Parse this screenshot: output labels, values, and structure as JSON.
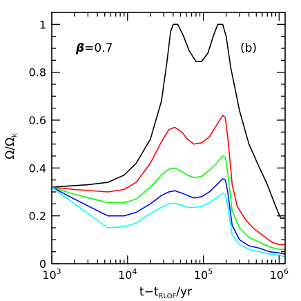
{
  "chart_data": {
    "type": "line",
    "xlabel": "t−t_RLOF/yr",
    "xlabel_main": "t−t",
    "xlabel_sub": "RLOF",
    "xlabel_tail": "/yr",
    "ylabel": "Ω/Ω_k",
    "ylabel_main": "Ω/Ω",
    "ylabel_sub": "k",
    "xscale": "log",
    "xlim": [
      1000,
      1200000
    ],
    "ylim": [
      0,
      1.05
    ],
    "x_ticks": [
      {
        "value": 1000,
        "base": "10",
        "exp": "3"
      },
      {
        "value": 10000,
        "base": "10",
        "exp": "4"
      },
      {
        "value": 100000,
        "base": "10",
        "exp": "5"
      },
      {
        "value": 1000000,
        "base": "10",
        "exp": "6"
      }
    ],
    "y_ticks": [
      {
        "value": 0,
        "label": "0"
      },
      {
        "value": 0.2,
        "label": "0.2"
      },
      {
        "value": 0.4,
        "label": "0.4"
      },
      {
        "value": 0.6,
        "label": "0.6"
      },
      {
        "value": 0.8,
        "label": "0.8"
      },
      {
        "value": 1,
        "label": "1"
      }
    ],
    "annotations": [
      {
        "id": "beta",
        "text_symbol": "β",
        "text_value": "=0.7"
      },
      {
        "id": "panel",
        "text": "(b)"
      }
    ],
    "series": [
      {
        "color": "#000000",
        "points": [
          [
            1000,
            0.32
          ],
          [
            3000,
            0.33
          ],
          [
            5500,
            0.34
          ],
          [
            9000,
            0.37
          ],
          [
            13000,
            0.42
          ],
          [
            20000,
            0.52
          ],
          [
            28000,
            0.68
          ],
          [
            33000,
            0.84
          ],
          [
            37000,
            0.97
          ],
          [
            40000,
            1.0
          ],
          [
            46000,
            1.0
          ],
          [
            55000,
            0.95
          ],
          [
            65000,
            0.89
          ],
          [
            80000,
            0.845
          ],
          [
            95000,
            0.845
          ],
          [
            115000,
            0.88
          ],
          [
            135000,
            0.95
          ],
          [
            155000,
            1.0
          ],
          [
            180000,
            1.0
          ],
          [
            200000,
            0.95
          ],
          [
            230000,
            0.82
          ],
          [
            300000,
            0.64
          ],
          [
            400000,
            0.5
          ],
          [
            500000,
            0.43
          ],
          [
            700000,
            0.33
          ],
          [
            900000,
            0.24
          ],
          [
            1050000,
            0.19
          ],
          [
            1200000,
            0.19
          ]
        ]
      },
      {
        "color": "#ff0000",
        "points": [
          [
            1000,
            0.32
          ],
          [
            2000,
            0.31
          ],
          [
            5500,
            0.3
          ],
          [
            9000,
            0.31
          ],
          [
            13000,
            0.34
          ],
          [
            20000,
            0.42
          ],
          [
            28000,
            0.51
          ],
          [
            35000,
            0.56
          ],
          [
            42000,
            0.57
          ],
          [
            52000,
            0.55
          ],
          [
            62000,
            0.52
          ],
          [
            75000,
            0.5
          ],
          [
            95000,
            0.505
          ],
          [
            120000,
            0.53
          ],
          [
            150000,
            0.58
          ],
          [
            180000,
            0.62
          ],
          [
            195000,
            0.61
          ],
          [
            215000,
            0.5
          ],
          [
            240000,
            0.33
          ],
          [
            280000,
            0.24
          ],
          [
            350000,
            0.19
          ],
          [
            450000,
            0.15
          ],
          [
            600000,
            0.12
          ],
          [
            800000,
            0.09
          ],
          [
            1000000,
            0.08
          ],
          [
            1200000,
            0.08
          ]
        ]
      },
      {
        "color": "#00ff00",
        "points": [
          [
            1000,
            0.32
          ],
          [
            2000,
            0.29
          ],
          [
            5500,
            0.255
          ],
          [
            9000,
            0.255
          ],
          [
            13000,
            0.27
          ],
          [
            20000,
            0.32
          ],
          [
            28000,
            0.37
          ],
          [
            35000,
            0.395
          ],
          [
            42000,
            0.4
          ],
          [
            52000,
            0.385
          ],
          [
            62000,
            0.37
          ],
          [
            75000,
            0.36
          ],
          [
            95000,
            0.365
          ],
          [
            120000,
            0.39
          ],
          [
            150000,
            0.42
          ],
          [
            180000,
            0.45
          ],
          [
            195000,
            0.445
          ],
          [
            210000,
            0.38
          ],
          [
            240000,
            0.22
          ],
          [
            300000,
            0.15
          ],
          [
            400000,
            0.11
          ],
          [
            550000,
            0.09
          ],
          [
            750000,
            0.07
          ],
          [
            1000000,
            0.06
          ],
          [
            1200000,
            0.06
          ]
        ]
      },
      {
        "color": "#0000ff",
        "points": [
          [
            1000,
            0.32
          ],
          [
            2000,
            0.27
          ],
          [
            5500,
            0.2
          ],
          [
            9000,
            0.2
          ],
          [
            13000,
            0.215
          ],
          [
            20000,
            0.25
          ],
          [
            28000,
            0.285
          ],
          [
            35000,
            0.3
          ],
          [
            42000,
            0.305
          ],
          [
            52000,
            0.295
          ],
          [
            62000,
            0.285
          ],
          [
            75000,
            0.275
          ],
          [
            95000,
            0.28
          ],
          [
            120000,
            0.3
          ],
          [
            150000,
            0.33
          ],
          [
            180000,
            0.355
          ],
          [
            195000,
            0.35
          ],
          [
            210000,
            0.3
          ],
          [
            240000,
            0.16
          ],
          [
            300000,
            0.1
          ],
          [
            400000,
            0.075
          ],
          [
            550000,
            0.065
          ],
          [
            750000,
            0.05
          ],
          [
            1000000,
            0.045
          ],
          [
            1200000,
            0.04
          ]
        ]
      },
      {
        "color": "#00ffff",
        "points": [
          [
            1000,
            0.32
          ],
          [
            2000,
            0.25
          ],
          [
            5500,
            0.15
          ],
          [
            9000,
            0.155
          ],
          [
            13000,
            0.17
          ],
          [
            20000,
            0.21
          ],
          [
            28000,
            0.235
          ],
          [
            35000,
            0.25
          ],
          [
            42000,
            0.252
          ],
          [
            52000,
            0.245
          ],
          [
            62000,
            0.235
          ],
          [
            75000,
            0.235
          ],
          [
            95000,
            0.24
          ],
          [
            120000,
            0.255
          ],
          [
            150000,
            0.275
          ],
          [
            180000,
            0.295
          ],
          [
            195000,
            0.29
          ],
          [
            210000,
            0.24
          ],
          [
            240000,
            0.12
          ],
          [
            300000,
            0.08
          ],
          [
            400000,
            0.06
          ],
          [
            550000,
            0.05
          ],
          [
            750000,
            0.04
          ],
          [
            1000000,
            0.035
          ],
          [
            1200000,
            0.03
          ]
        ]
      }
    ]
  }
}
